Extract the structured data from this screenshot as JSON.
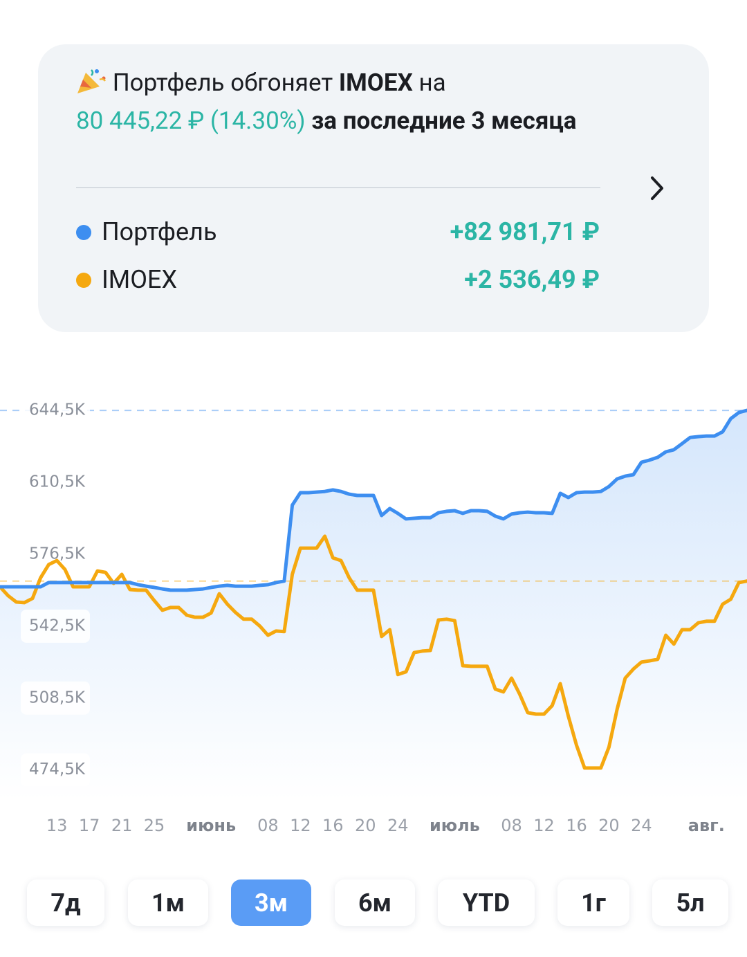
{
  "card": {
    "headline_1": "Портфель обгоняет",
    "index": "IMOEX",
    "headline_2": "на",
    "amount": "80 445,22 ₽",
    "percent": "(14.30%)",
    "headline_3": "за последние 3 месяца",
    "series_results": [
      "+82 981,71 ₽",
      "+2 536,49 ₽"
    ]
  },
  "chart_data": {
    "type": "line",
    "categories": [
      null,
      null,
      null,
      null,
      null,
      null,
      null,
      "13",
      null,
      null,
      null,
      "17",
      null,
      null,
      null,
      "21",
      null,
      null,
      null,
      "25",
      null,
      null,
      null,
      null,
      null,
      null,
      "июнь",
      null,
      null,
      null,
      null,
      null,
      null,
      "08",
      null,
      null,
      null,
      "12",
      null,
      null,
      null,
      "16",
      null,
      null,
      null,
      "20",
      null,
      null,
      null,
      "24",
      null,
      null,
      null,
      null,
      null,
      null,
      "июль",
      null,
      null,
      null,
      null,
      null,
      null,
      "08",
      null,
      null,
      null,
      "12",
      null,
      null,
      null,
      "16",
      null,
      null,
      null,
      "20",
      null,
      null,
      null,
      "24",
      null,
      null,
      null,
      null,
      null,
      null,
      null,
      "авг.",
      null,
      null,
      null,
      null,
      null
    ],
    "series": [
      {
        "name": "Портфель",
        "color": "#3d8ef0",
        "values": [
          561100,
          561100,
          561100,
          561100,
          561100,
          561100,
          563100,
          563100,
          563100,
          563100,
          563100,
          563100,
          563100,
          563100,
          563100,
          563100,
          563100,
          562100,
          561400,
          560800,
          560100,
          559500,
          559500,
          559500,
          559800,
          560100,
          560800,
          561400,
          561800,
          561400,
          561400,
          561400,
          561800,
          562100,
          563100,
          563800,
          599700,
          605600,
          605600,
          605900,
          606200,
          606900,
          606200,
          604900,
          604300,
          604300,
          604300,
          594800,
          598100,
          595800,
          593200,
          593500,
          593800,
          593800,
          596100,
          596800,
          597100,
          595800,
          597100,
          597100,
          596800,
          594500,
          593200,
          595500,
          596100,
          596400,
          596100,
          596100,
          595800,
          605300,
          603300,
          605600,
          605900,
          605900,
          606200,
          608500,
          612100,
          613400,
          614100,
          620000,
          621000,
          622300,
          624900,
          625900,
          628800,
          631700,
          632100,
          632400,
          632400,
          634400,
          640600,
          643500,
          644500
        ]
      },
      {
        "name": "IMOEX",
        "color": "#f5a80f",
        "values": [
          561100,
          556900,
          553900,
          553600,
          555600,
          565400,
          571600,
          573500,
          569300,
          561100,
          561100,
          561100,
          568600,
          567900,
          562700,
          567000,
          559800,
          559500,
          559500,
          554600,
          550000,
          551300,
          551300,
          547700,
          546700,
          546700,
          548700,
          557800,
          552900,
          549000,
          545800,
          545800,
          542500,
          538200,
          540200,
          539900,
          567000,
          579400,
          579400,
          579400,
          585000,
          574800,
          573500,
          565400,
          559500,
          559500,
          559500,
          537600,
          540800,
          519600,
          520900,
          530000,
          530700,
          531000,
          545400,
          545800,
          545100,
          523800,
          523500,
          523500,
          523500,
          512700,
          511400,
          517900,
          510400,
          501600,
          500900,
          500900,
          504900,
          515300,
          499900,
          486200,
          475400,
          475400,
          475400,
          485300,
          503200,
          517900,
          522200,
          525500,
          526100,
          526800,
          538200,
          534000,
          540800,
          540800,
          544100,
          544800,
          544800,
          552900,
          555200,
          563100,
          563800
        ]
      }
    ],
    "ylim": [
      460000,
      655000
    ],
    "yticks": [
      {
        "value": 474500,
        "label": "474,5K"
      },
      {
        "value": 508500,
        "label": "508,5K"
      },
      {
        "value": 542500,
        "label": "542,5K"
      },
      {
        "value": 576500,
        "label": "576,5K"
      },
      {
        "value": 610500,
        "label": "610,5K"
      },
      {
        "value": 644500,
        "label": "644,5K"
      }
    ],
    "grid": false
  },
  "periods": {
    "options": [
      "7д",
      "1м",
      "3м",
      "6м",
      "YTD",
      "1г",
      "5л"
    ],
    "selected": 2
  }
}
